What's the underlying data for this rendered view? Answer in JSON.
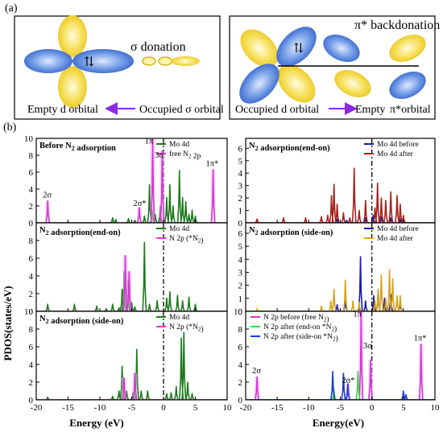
{
  "figure": {
    "label_a": "(a)",
    "label_b": "(b)",
    "a_left": {
      "donation_label": "σ donation",
      "electron_symbol": "⇅",
      "caption_left": "Empty d orbital",
      "caption_right": "Occupied σ orbital"
    },
    "a_right": {
      "backdonation_label": "π* backdonation",
      "electron_symbol": "⇅",
      "caption_left": "Occupied d orbital",
      "caption_mid": "Empty",
      "caption_right": "π*orbital"
    },
    "colors": {
      "blue_orbital": "#3a6fd8",
      "yellow_orbital": "#f2d22e",
      "arrow_purple": "#8a2be2"
    }
  },
  "chart_data": [
    {
      "id": "left-top",
      "type": "line",
      "title": "Before N2 adsorption",
      "xlim": [
        -20,
        10
      ],
      "ylim": [
        0,
        10
      ],
      "yticks": [
        0,
        2,
        4,
        6,
        8,
        10
      ],
      "legend": [
        "Mo  4d",
        "free N2 2p"
      ],
      "legend_placement": "top-right",
      "series": [
        {
          "name": "Mo  4d",
          "color": "#1d7a1d",
          "peaks": [
            [
              -8,
              0.6
            ],
            [
              -7.5,
              0.4
            ],
            [
              -5.5,
              0.5
            ],
            [
              -4.5,
              0.3
            ],
            [
              -3,
              0.8
            ],
            [
              -2.2,
              4.5
            ],
            [
              -1.8,
              1.5
            ],
            [
              -1.3,
              1.0
            ],
            [
              -0.5,
              2.0
            ],
            [
              0.5,
              3.0
            ],
            [
              1,
              4.5
            ],
            [
              1.5,
              2.0
            ],
            [
              2.5,
              6.2
            ],
            [
              3,
              3.0
            ],
            [
              3.5,
              2.5
            ],
            [
              4,
              1.0
            ],
            [
              4.5,
              1.5
            ],
            [
              5,
              0.8
            ]
          ]
        },
        {
          "name": "free N2 2p",
          "color": "#d23ad2",
          "peaks": [
            [
              -18.2,
              2.6
            ],
            [
              -3.8,
              1.8
            ],
            [
              -1.7,
              9.9
            ],
            [
              -0.2,
              8.5
            ],
            [
              7.8,
              6.3
            ]
          ]
        }
      ],
      "annotations": [
        {
          "text": "2σ",
          "x": -18.2,
          "y": 3.0
        },
        {
          "text": "2σ*",
          "x": -4.0,
          "y": 2.0
        },
        {
          "text": "1π",
          "x": -2.2,
          "y": 9.4
        },
        {
          "text": "3σ",
          "x": -0.6,
          "y": 7.7
        },
        {
          "text": "1π*",
          "x": 7.4,
          "y": 6.7
        }
      ],
      "vline": 0
    },
    {
      "id": "left-mid",
      "type": "line",
      "title": "N2 adsorption(end-on)",
      "xlim": [
        -20,
        10
      ],
      "ylim": [
        0,
        10
      ],
      "yticks": [
        0,
        2,
        4,
        6,
        8
      ],
      "legend": [
        "Mo 4d",
        "N 2p (*N2)"
      ],
      "legend_placement": "top-right",
      "series": [
        {
          "name": "Mo 4d",
          "color": "#1d7a1d",
          "peaks": [
            [
              -18.2,
              0.8
            ],
            [
              -14,
              0.8
            ],
            [
              -10.5,
              0.6
            ],
            [
              -9,
              0.3
            ],
            [
              -8,
              0.8
            ],
            [
              -7,
              0.4
            ],
            [
              -6.5,
              2.5
            ],
            [
              -6.2,
              4.5
            ],
            [
              -5.6,
              3.5
            ],
            [
              -5,
              1.0
            ],
            [
              -4.5,
              0.5
            ],
            [
              -3,
              7.8
            ],
            [
              -2.2,
              0.8
            ],
            [
              -1,
              1.2
            ],
            [
              0.5,
              1.5
            ],
            [
              1,
              2.2
            ],
            [
              2.2,
              1.8
            ],
            [
              3,
              1.2
            ],
            [
              4,
              1.6
            ],
            [
              5,
              0.8
            ]
          ]
        },
        {
          "name": "N 2p (*N2)",
          "color": "#d23ad2",
          "peaks": [
            [
              -6,
              6.3
            ],
            [
              -5.4,
              4.5
            ]
          ]
        }
      ],
      "vline": 0
    },
    {
      "id": "left-bot",
      "type": "line",
      "title": "N2 adsorption (side-on)",
      "xlim": [
        -20,
        10
      ],
      "ylim": [
        0,
        10
      ],
      "yticks": [
        0,
        2,
        4,
        6,
        8,
        10
      ],
      "xticks": [
        -20,
        -15,
        -10,
        -5,
        0,
        5,
        10
      ],
      "legend": [
        "Mo 4d",
        "N 2p (*N2)"
      ],
      "legend_placement": "top-right",
      "series": [
        {
          "name": "Mo 4d",
          "color": "#1d7a1d",
          "peaks": [
            [
              -18.2,
              0.3
            ],
            [
              -8,
              0.4
            ],
            [
              -7,
              1.0
            ],
            [
              -6.5,
              3.8
            ],
            [
              -6.3,
              0.6
            ],
            [
              -5.8,
              1.0
            ],
            [
              -4.8,
              0.8
            ],
            [
              -4.2,
              5.7
            ],
            [
              -3.5,
              1.0
            ],
            [
              -2.5,
              1.0
            ],
            [
              0.5,
              0.7
            ],
            [
              1.2,
              0.8
            ],
            [
              2,
              1.5
            ],
            [
              2.8,
              7.0
            ],
            [
              3.2,
              7.6
            ],
            [
              3.8,
              2.0
            ],
            [
              4.5,
              0.7
            ]
          ]
        },
        {
          "name": "N 2p (*N2)",
          "color": "#d23ad2",
          "peaks": [
            [
              -6.2,
              2.5
            ],
            [
              -4.5,
              3.0
            ]
          ]
        }
      ],
      "vline": 0
    },
    {
      "id": "right-top",
      "type": "line",
      "title": "N2 adsorption(end-on)",
      "xlim": [
        -20,
        10
      ],
      "ylim": [
        0,
        6.8
      ],
      "yticks": [
        0,
        1,
        2,
        3,
        4,
        5,
        6
      ],
      "legend": [
        "Mo 4d before",
        "Mo 4d  after"
      ],
      "legend_placement": "top-right",
      "series": [
        {
          "name": "Mo 4d before",
          "color": "#1a1ab0",
          "peaks": [
            [
              -5.5,
              0.3
            ],
            [
              -4,
              0.2
            ],
            [
              -1,
              0.4
            ],
            [
              0.2,
              0.6
            ],
            [
              1.5,
              0.5
            ],
            [
              3,
              0.4
            ],
            [
              4.5,
              0.3
            ]
          ]
        },
        {
          "name": "Mo 4d  after",
          "color": "#a6211e",
          "peaks": [
            [
              -18.2,
              0.3
            ],
            [
              -14,
              0.4
            ],
            [
              -10.5,
              0.4
            ],
            [
              -8,
              0.5
            ],
            [
              -7,
              0.6
            ],
            [
              -6.4,
              2.2
            ],
            [
              -6,
              3.1
            ],
            [
              -5.5,
              1.5
            ],
            [
              -4.5,
              0.8
            ],
            [
              -3.5,
              0.4
            ],
            [
              -2.8,
              4.4
            ],
            [
              -2,
              1.0
            ],
            [
              -1,
              1.8
            ],
            [
              0.5,
              1.2
            ],
            [
              0.9,
              3.2
            ],
            [
              1.5,
              2.0
            ],
            [
              2.2,
              1.8
            ],
            [
              3,
              2.5
            ],
            [
              4,
              2.2
            ],
            [
              4.5,
              1.5
            ],
            [
              5,
              0.6
            ]
          ]
        }
      ],
      "vline": 0
    },
    {
      "id": "right-mid",
      "type": "line",
      "title": "N2 adsorption (side-on)",
      "xlim": [
        -20,
        10
      ],
      "ylim": [
        0,
        6.8
      ],
      "yticks": [
        0,
        1,
        2,
        3,
        4,
        5,
        6
      ],
      "legend": [
        "Mo 4d before",
        "Mo 4d after"
      ],
      "legend_placement": "top-right",
      "series": [
        {
          "name": "Mo 4d before",
          "color": "#1a1ab0",
          "peaks": [
            [
              -5.5,
              0.5
            ],
            [
              -4.2,
              1.0
            ],
            [
              -1.8,
              4.2
            ],
            [
              -1,
              0.8
            ],
            [
              0.3,
              1.2
            ],
            [
              1,
              1.6
            ],
            [
              2,
              1.0
            ],
            [
              3,
              1.3
            ],
            [
              4.5,
              0.8
            ]
          ]
        },
        {
          "name": "Mo 4d after",
          "color": "#d6a21e",
          "peaks": [
            [
              -18.2,
              0.2
            ],
            [
              -8,
              0.4
            ],
            [
              -6.5,
              0.8
            ],
            [
              -6,
              1.7
            ],
            [
              -4.2,
              2.4
            ],
            [
              -3,
              0.8
            ],
            [
              -2,
              0.7
            ],
            [
              0.5,
              0.8
            ],
            [
              1,
              1.7
            ],
            [
              1.5,
              2.8
            ],
            [
              2.2,
              1.0
            ],
            [
              2.8,
              3.2
            ],
            [
              3.3,
              2.5
            ],
            [
              4,
              1.2
            ],
            [
              4.5,
              1.2
            ]
          ]
        }
      ],
      "vline": 0
    },
    {
      "id": "right-bot",
      "type": "line",
      "title": "",
      "xlim": [
        -20,
        10
      ],
      "ylim": [
        0,
        10
      ],
      "yticks": [
        0,
        2,
        4,
        6,
        8,
        10
      ],
      "xticks": [
        -20,
        -15,
        -10,
        -5,
        0,
        5,
        10
      ],
      "legend": [
        "N  2p before  (free  N2)",
        "N  2p after (end-on *N2)",
        "N  2p after (side-on *N2)"
      ],
      "legend_placement": "top-left",
      "series": [
        {
          "name": "N  2p before  (free  N2)",
          "color": "#d23ad2",
          "peaks": [
            [
              -18.2,
              2.6
            ],
            [
              -3.8,
              1.8
            ],
            [
              -1.7,
              9.9
            ],
            [
              -0.2,
              4.5
            ],
            [
              7.8,
              6.3
            ]
          ]
        },
        {
          "name": "N  2p after (end-on *N2)",
          "color": "#3cd43c",
          "peaks": [
            [
              -6,
              1.2
            ],
            [
              -2.2,
              3.2
            ]
          ]
        },
        {
          "name": "N  2p after (side-on *N2)",
          "color": "#1a3ad6",
          "peaks": [
            [
              -6.2,
              3.2
            ],
            [
              -4.5,
              3.0
            ],
            [
              -3.8,
              1.8
            ],
            [
              5,
              1.0
            ],
            [
              5.4,
              0.6
            ]
          ]
        }
      ],
      "annotations": [
        {
          "text": "2σ",
          "x": -18.2,
          "y": 3.0
        },
        {
          "text": "2σ*",
          "x": -4.0,
          "y": 1.9
        },
        {
          "text": "1π",
          "x": -2.2,
          "y": 9.4
        },
        {
          "text": "3σ",
          "x": -0.6,
          "y": 5.8
        },
        {
          "text": "1π*",
          "x": 7.4,
          "y": 6.7
        }
      ],
      "vline": 0
    }
  ],
  "axes": {
    "ylabel": "PDOS(states/eV)",
    "xlabel": "Energy (eV)",
    "xlabel_right": "Energy(eV)"
  }
}
